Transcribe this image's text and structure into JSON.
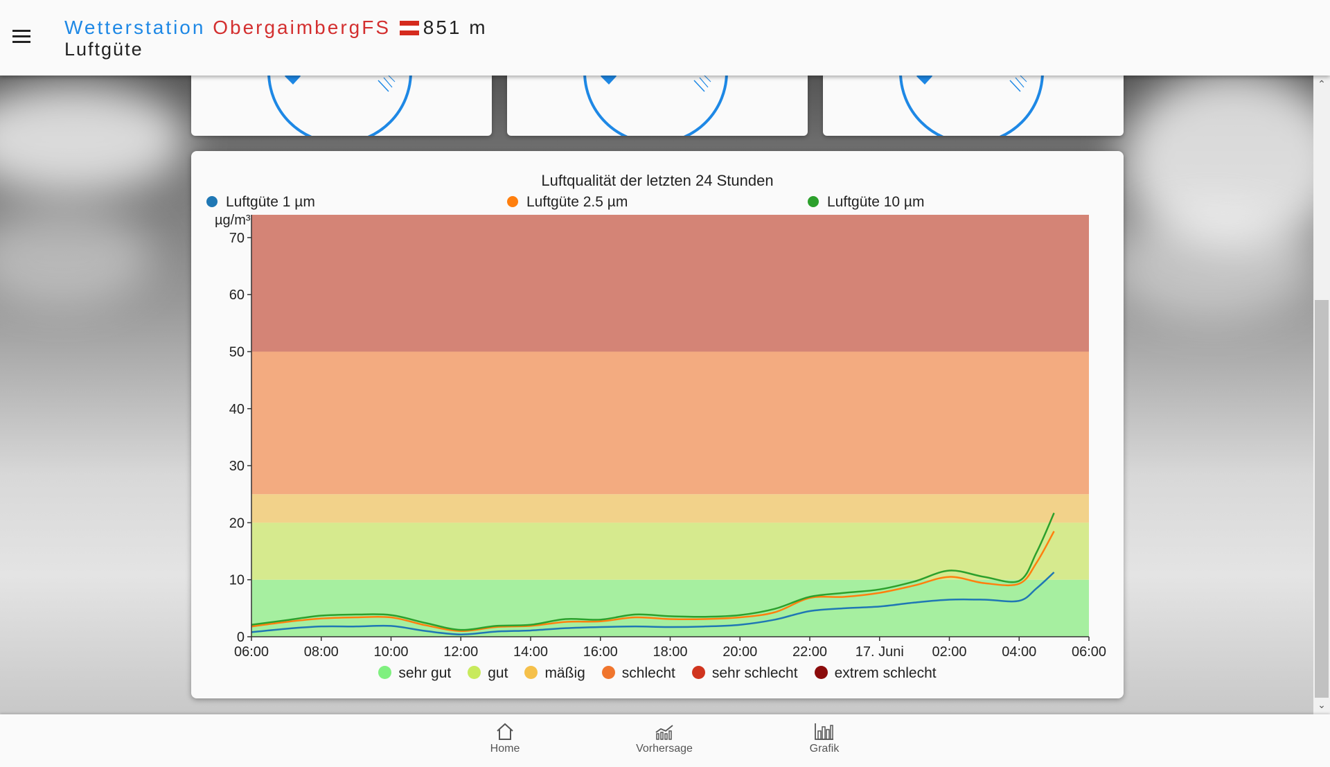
{
  "header": {
    "prefix": "Wetterstation",
    "station": "ObergaimbergFS",
    "altitude": "851 m",
    "subtitle": "Luftgüte",
    "flag_colors": [
      "#d52b1e",
      "#ffffff",
      "#d52b1e"
    ]
  },
  "chart_data": {
    "type": "line",
    "title": "Luftqualität der letzten 24 Stunden",
    "ylabel": "µg/m³",
    "ylim": [
      0,
      74
    ],
    "y_ticks": [
      "0",
      "10",
      "20",
      "30",
      "40",
      "50",
      "60",
      "70"
    ],
    "x_ticks": [
      "06:00",
      "08:00",
      "10:00",
      "12:00",
      "14:00",
      "16:00",
      "18:00",
      "20:00",
      "22:00",
      "17. Juni",
      "02:00",
      "04:00",
      "06:00"
    ],
    "bands": [
      {
        "from": 0,
        "to": 10,
        "color": "#a6efa0"
      },
      {
        "from": 10,
        "to": 20,
        "color": "#d6ea8e"
      },
      {
        "from": 20,
        "to": 25,
        "color": "#f2d28a"
      },
      {
        "from": 25,
        "to": 50,
        "color": "#f3ab80"
      },
      {
        "from": 50,
        "to": 74,
        "color": "#d48476"
      }
    ],
    "x": [
      0,
      1,
      2,
      3,
      4,
      5,
      6,
      7,
      8,
      9,
      10,
      11,
      12,
      13,
      14,
      15,
      16,
      17,
      18,
      19,
      20,
      21,
      22,
      22.5,
      23
    ],
    "series": [
      {
        "name": "Luftgüte 1 µm",
        "color": "#1f77b4",
        "values": [
          0.8,
          1.4,
          1.8,
          1.8,
          1.9,
          1.0,
          0.4,
          0.9,
          1.1,
          1.5,
          1.7,
          1.8,
          1.7,
          1.8,
          2.1,
          3.0,
          4.5,
          5.0,
          5.3,
          6.0,
          6.5,
          6.5,
          6.3,
          8.5,
          11.3
        ]
      },
      {
        "name": "Luftgüte 2.5 µm",
        "color": "#ff7f0e",
        "values": [
          1.8,
          2.6,
          3.2,
          3.4,
          3.4,
          2.0,
          1.0,
          1.7,
          1.9,
          2.6,
          2.7,
          3.4,
          3.1,
          3.1,
          3.4,
          4.3,
          6.8,
          7.0,
          7.7,
          9.0,
          10.5,
          9.4,
          9.3,
          13.0,
          18.5
        ]
      },
      {
        "name": "Luftgüte 10 µm",
        "color": "#2ca02c",
        "values": [
          2.1,
          2.9,
          3.7,
          3.9,
          3.8,
          2.4,
          1.2,
          1.9,
          2.1,
          3.1,
          3.0,
          3.9,
          3.6,
          3.5,
          3.8,
          4.9,
          7.0,
          7.7,
          8.3,
          9.7,
          11.6,
          10.5,
          9.8,
          14.8,
          21.7
        ]
      }
    ],
    "band_legend": [
      {
        "label": "sehr gut",
        "color": "#7ff07f"
      },
      {
        "label": "gut",
        "color": "#c8ea5c"
      },
      {
        "label": "mäßig",
        "color": "#f5c04a"
      },
      {
        "label": "schlecht",
        "color": "#f0752d"
      },
      {
        "label": "sehr schlecht",
        "color": "#d0341e"
      },
      {
        "label": "extrem schlecht",
        "color": "#8b0b0b"
      }
    ]
  },
  "nav": {
    "home": "Home",
    "forecast": "Vorhersage",
    "graphs": "Grafik"
  },
  "colors": {
    "accent": "#1e88e5",
    "station": "#d32f2f"
  }
}
